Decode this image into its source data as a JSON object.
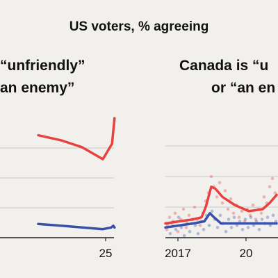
{
  "title": "US voters, % agreeing",
  "colors": {
    "red": "#e8413f",
    "blue": "#3a50a8",
    "grid": "#c9c9c5",
    "background": "#f1f0ec"
  },
  "chart_data": [
    {
      "type": "line",
      "title_lines": [
        "“unfriendly”",
        "an enemy”"
      ],
      "x_ticks": [
        "25"
      ],
      "series": [
        {
          "color": "red",
          "values": [
            {
              "x": -175,
              "y": 60
            },
            {
              "x": -120,
              "y": 57
            },
            {
              "x": -70,
              "y": 53
            },
            {
              "x": -20,
              "y": 46
            },
            {
              "x": 2,
              "y": 55
            },
            {
              "x": 8,
              "y": 70
            }
          ]
        },
        {
          "color": "blue",
          "values": [
            {
              "x": -175,
              "y": 8
            },
            {
              "x": -120,
              "y": 7
            },
            {
              "x": -70,
              "y": 6
            },
            {
              "x": -20,
              "y": 5
            },
            {
              "x": 0,
              "y": 6
            },
            {
              "x": 5,
              "y": 7
            },
            {
              "x": 8,
              "y": 6
            }
          ]
        }
      ]
    },
    {
      "type": "line",
      "title_lines": [
        "Canada is “u",
        "or “an en"
      ],
      "x_ticks": [
        "2017",
        "20"
      ],
      "scatter_red": [
        [
          2,
          4
        ],
        [
          6,
          10
        ],
        [
          10,
          6
        ],
        [
          14,
          12
        ],
        [
          18,
          3
        ],
        [
          22,
          9
        ],
        [
          26,
          14
        ],
        [
          30,
          5
        ],
        [
          34,
          11
        ],
        [
          38,
          7
        ],
        [
          42,
          15
        ],
        [
          46,
          9
        ],
        [
          50,
          6
        ],
        [
          54,
          12
        ],
        [
          58,
          18
        ],
        [
          62,
          22
        ],
        [
          66,
          30
        ],
        [
          70,
          25
        ],
        [
          74,
          20
        ],
        [
          78,
          27
        ],
        [
          82,
          17
        ],
        [
          86,
          23
        ],
        [
          90,
          14
        ],
        [
          94,
          19
        ],
        [
          98,
          12
        ],
        [
          102,
          16
        ],
        [
          106,
          10
        ],
        [
          110,
          13
        ],
        [
          114,
          8
        ],
        [
          118,
          14
        ],
        [
          122,
          11
        ],
        [
          126,
          16
        ],
        [
          130,
          9
        ],
        [
          134,
          14
        ],
        [
          138,
          12
        ],
        [
          142,
          20
        ],
        [
          146,
          17
        ],
        [
          150,
          25
        ],
        [
          154,
          29
        ],
        [
          158,
          22
        ]
      ],
      "scatter_blue": [
        [
          3,
          6
        ],
        [
          7,
          2
        ],
        [
          11,
          8
        ],
        [
          15,
          4
        ],
        [
          19,
          10
        ],
        [
          23,
          5
        ],
        [
          27,
          1
        ],
        [
          31,
          7
        ],
        [
          35,
          3
        ],
        [
          39,
          9
        ],
        [
          43,
          6
        ],
        [
          47,
          2
        ],
        [
          51,
          8
        ],
        [
          55,
          4
        ],
        [
          59,
          11
        ],
        [
          63,
          6
        ],
        [
          67,
          13
        ],
        [
          71,
          9
        ],
        [
          75,
          5
        ],
        [
          79,
          11
        ],
        [
          83,
          7
        ],
        [
          87,
          3
        ],
        [
          91,
          9
        ],
        [
          95,
          5
        ],
        [
          99,
          10
        ],
        [
          103,
          6
        ],
        [
          107,
          8
        ],
        [
          111,
          4
        ],
        [
          115,
          9
        ],
        [
          119,
          5
        ],
        [
          123,
          10
        ],
        [
          127,
          6
        ],
        [
          131,
          8
        ],
        [
          135,
          4
        ],
        [
          139,
          9
        ],
        [
          143,
          7
        ],
        [
          147,
          10
        ],
        [
          151,
          6
        ],
        [
          155,
          11
        ],
        [
          159,
          8
        ]
      ],
      "series": [
        {
          "color": "red",
          "values": [
            {
              "x": 0,
              "y": 7
            },
            {
              "x": 20,
              "y": 8
            },
            {
              "x": 40,
              "y": 9
            },
            {
              "x": 52,
              "y": 10
            },
            {
              "x": 58,
              "y": 15
            },
            {
              "x": 62,
              "y": 20
            },
            {
              "x": 66,
              "y": 25
            },
            {
              "x": 72,
              "y": 24
            },
            {
              "x": 82,
              "y": 20
            },
            {
              "x": 100,
              "y": 16
            },
            {
              "x": 120,
              "y": 13
            },
            {
              "x": 140,
              "y": 14
            },
            {
              "x": 150,
              "y": 17
            },
            {
              "x": 160,
              "y": 21
            }
          ]
        },
        {
          "color": "blue",
          "values": [
            {
              "x": 0,
              "y": 5
            },
            {
              "x": 20,
              "y": 6
            },
            {
              "x": 40,
              "y": 7
            },
            {
              "x": 56,
              "y": 8
            },
            {
              "x": 64,
              "y": 12
            },
            {
              "x": 70,
              "y": 10
            },
            {
              "x": 80,
              "y": 7
            },
            {
              "x": 100,
              "y": 7
            },
            {
              "x": 120,
              "y": 7
            },
            {
              "x": 140,
              "y": 7
            },
            {
              "x": 160,
              "y": 7
            }
          ]
        }
      ]
    }
  ]
}
